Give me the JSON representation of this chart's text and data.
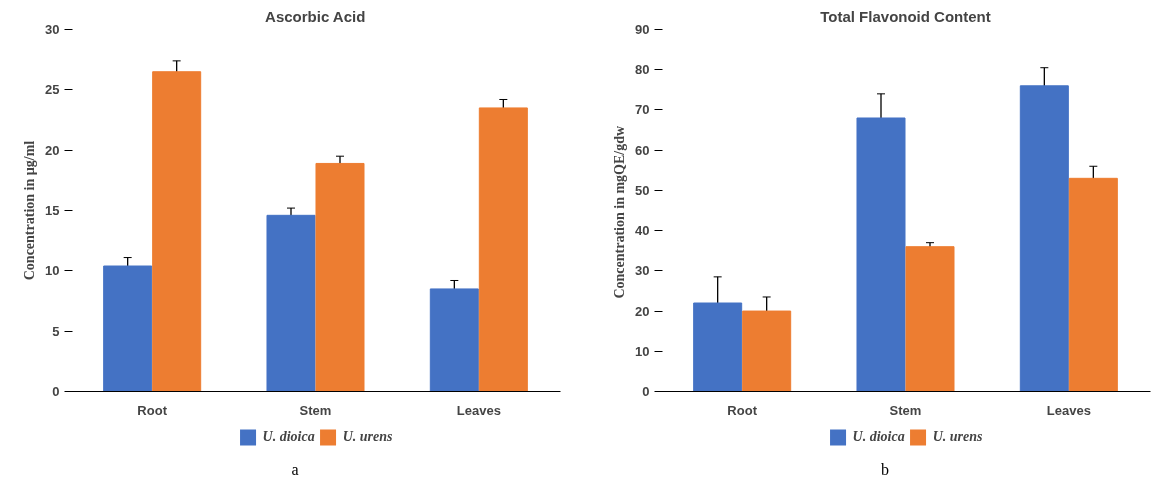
{
  "chart_data": [
    {
      "type": "bar",
      "title": "Ascorbic Acid",
      "ylabel": "Concentration in µg/ml",
      "categories": [
        "Root",
        "Stem",
        "Leaves"
      ],
      "ylim": [
        0,
        30
      ],
      "yticks": [
        0,
        5,
        10,
        15,
        20,
        25,
        30
      ],
      "grid": false,
      "legend": "bottom",
      "annotations": [
        "a"
      ],
      "series": [
        {
          "name": "U. dioica",
          "color": "#4472c4",
          "values": [
            10.4,
            14.6,
            8.5
          ],
          "errors": [
            0.7,
            0.6,
            0.7
          ]
        },
        {
          "name": "U. urens",
          "color": "#ed7d31",
          "values": [
            26.5,
            18.9,
            23.5
          ],
          "errors": [
            0.9,
            0.6,
            0.7
          ]
        }
      ]
    },
    {
      "type": "bar",
      "title": "Total Flavonoid Content",
      "ylabel": "Concentration  in mgQE/gdw",
      "categories": [
        "Root",
        "Stem",
        "Leaves"
      ],
      "ylim": [
        0,
        90
      ],
      "yticks": [
        0,
        10,
        20,
        30,
        40,
        50,
        60,
        70,
        80,
        90
      ],
      "grid": false,
      "legend": "bottom",
      "annotations": [
        "b"
      ],
      "series": [
        {
          "name": "U. dioica",
          "color": "#4472c4",
          "values": [
            22,
            68,
            76
          ],
          "errors": [
            6.5,
            6,
            4.5
          ]
        },
        {
          "name": "U. urens",
          "color": "#ed7d31",
          "values": [
            20,
            36,
            53
          ],
          "errors": [
            3.5,
            1,
            3
          ]
        }
      ]
    }
  ]
}
